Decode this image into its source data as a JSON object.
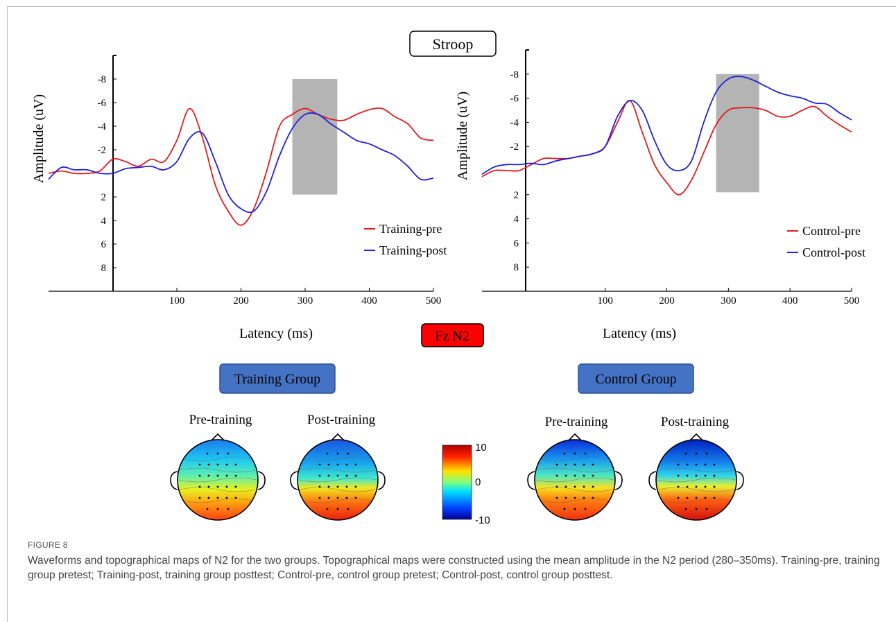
{
  "figure": {
    "title_box": "Stroop",
    "electrode_box": "Fz  N2",
    "shared_xlabel": "Latency (ms)",
    "colorbar": {
      "ticks": [
        "10",
        "0",
        "-10"
      ],
      "min": -10,
      "max": 10
    },
    "groups": [
      {
        "label": "Training Group",
        "maps": [
          "Pre-training",
          "Post-training"
        ]
      },
      {
        "label": "Control Group",
        "maps": [
          "Pre-training",
          "Post-training"
        ]
      }
    ],
    "caption_label": "FIGURE 8",
    "caption": "Waveforms and topographical maps of N2 for the two groups. Topographical maps were constructed using the mean amplitude in the N2 period (280–350ms). Training-pre, training group pretest; Training-post, training group posttest; Control-pre, control group pretest; Control-post, control group posttest."
  },
  "chart_data": [
    {
      "type": "line",
      "xlabel": "Latency (ms)",
      "ylabel": "Amplitude (uV)",
      "x_ticks": [
        100,
        200,
        300,
        400,
        500
      ],
      "y_ticks": [
        -8,
        -6,
        -4,
        -2,
        2,
        4,
        6,
        8
      ],
      "xlim": [
        -100,
        500
      ],
      "ylim": [
        -10,
        10
      ],
      "y_inverted": true,
      "shaded_window": [
        280,
        350
      ],
      "legend_position": "bottom-right",
      "series": [
        {
          "name": "Training-pre",
          "color": "#e41a1c",
          "x": [
            -100,
            -80,
            -60,
            -40,
            -20,
            0,
            20,
            40,
            60,
            80,
            100,
            120,
            140,
            160,
            180,
            200,
            220,
            240,
            260,
            280,
            300,
            320,
            340,
            360,
            380,
            400,
            420,
            440,
            460,
            480,
            500
          ],
          "y": [
            0,
            -0.2,
            0,
            0,
            -0.2,
            -1.2,
            -1,
            -0.6,
            -1.2,
            -1,
            -2.8,
            -5.5,
            -3,
            1,
            3.2,
            4.4,
            3,
            -0.2,
            -4,
            -5,
            -5.5,
            -5,
            -4.6,
            -4.5,
            -5,
            -5.4,
            -5.5,
            -4.8,
            -4.2,
            -3,
            -2.8
          ]
        },
        {
          "name": "Training-post",
          "color": "#1f1fe0",
          "x": [
            -100,
            -80,
            -60,
            -40,
            -20,
            0,
            20,
            40,
            60,
            80,
            100,
            120,
            140,
            160,
            180,
            200,
            220,
            240,
            260,
            280,
            300,
            320,
            340,
            360,
            380,
            400,
            420,
            440,
            460,
            480,
            500
          ],
          "y": [
            0.5,
            -0.5,
            -0.3,
            -0.3,
            0,
            0,
            -0.4,
            -0.5,
            -0.6,
            -0.3,
            -1,
            -3,
            -3.4,
            -1,
            1.8,
            3,
            3.2,
            1.5,
            -1.5,
            -3.8,
            -5,
            -5,
            -4.2,
            -3.5,
            -2.8,
            -2.5,
            -2,
            -1.5,
            -0.6,
            0.5,
            0.4
          ]
        }
      ]
    },
    {
      "type": "line",
      "xlabel": "Latency (ms)",
      "ylabel": "Amplitude (uV)",
      "x_ticks": [
        100,
        200,
        300,
        400,
        500
      ],
      "y_ticks": [
        -8,
        -6,
        -4,
        -2,
        2,
        4,
        6,
        8
      ],
      "xlim": [
        -100,
        500
      ],
      "ylim": [
        -10,
        10
      ],
      "y_inverted": true,
      "shaded_window": [
        280,
        350
      ],
      "legend_position": "bottom-right",
      "series": [
        {
          "name": "Control-pre",
          "color": "#e41a1c",
          "x": [
            -100,
            -80,
            -60,
            -40,
            -20,
            0,
            20,
            40,
            60,
            80,
            100,
            120,
            140,
            160,
            180,
            200,
            220,
            240,
            260,
            280,
            300,
            320,
            340,
            360,
            380,
            400,
            420,
            440,
            460,
            480,
            500
          ],
          "y": [
            0.5,
            0,
            0,
            0,
            -0.5,
            -1,
            -1,
            -1,
            -1.2,
            -1.4,
            -2,
            -4,
            -5.8,
            -3.2,
            -0.5,
            1,
            2,
            0.8,
            -1.5,
            -3.8,
            -5,
            -5.2,
            -5.2,
            -5,
            -4.5,
            -4.5,
            -5,
            -5.3,
            -4.5,
            -3.8,
            -3.2
          ]
        },
        {
          "name": "Control-post",
          "color": "#1f1fe0",
          "x": [
            -100,
            -80,
            -60,
            -40,
            -20,
            0,
            20,
            40,
            60,
            80,
            100,
            120,
            140,
            160,
            180,
            200,
            220,
            240,
            260,
            280,
            300,
            320,
            340,
            360,
            380,
            400,
            420,
            440,
            460,
            480,
            500
          ],
          "y": [
            0.3,
            -0.3,
            -0.5,
            -0.5,
            -0.6,
            -0.5,
            -0.8,
            -1,
            -1.2,
            -1.4,
            -2,
            -4.5,
            -5.8,
            -5,
            -2.5,
            -0.5,
            0,
            -0.8,
            -4,
            -6.5,
            -7.6,
            -7.8,
            -7.5,
            -7,
            -6.5,
            -6.2,
            -6,
            -5.6,
            -5.5,
            -4.8,
            -4.2
          ]
        }
      ]
    }
  ]
}
